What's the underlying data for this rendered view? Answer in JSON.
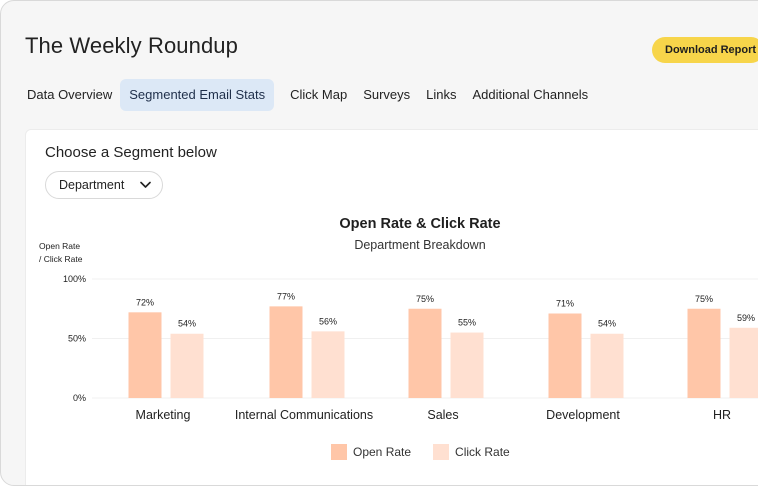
{
  "app": {
    "title": "The Weekly Roundup",
    "download_label": "Download Report"
  },
  "tabs": [
    {
      "label": "Data Overview",
      "active": false
    },
    {
      "label": "Segmented Email Stats",
      "active": true
    },
    {
      "label": "Click Map",
      "active": false
    },
    {
      "label": "Surveys",
      "active": false
    },
    {
      "label": "Links",
      "active": false
    },
    {
      "label": "Additional Channels",
      "active": false
    }
  ],
  "segment": {
    "label": "Choose a Segment below",
    "selected": "Department",
    "dropdown_icon": "chevron-down-icon"
  },
  "colors": {
    "accent": "#f7d54a",
    "open_rate": "#ffc6a8",
    "click_rate": "#ffe0d1",
    "active_tab": "#dce8f6"
  },
  "chart_data": {
    "type": "bar",
    "title": "Open Rate & Click Rate",
    "subtitle": "Department Breakdown",
    "ylabel_lines": [
      "Open Rate",
      "/ Click Rate"
    ],
    "ylim": [
      0,
      100
    ],
    "yticks": [
      "100%",
      "50%",
      "0%"
    ],
    "categories": [
      "Marketing",
      "Internal Communications",
      "Sales",
      "Development",
      "HR"
    ],
    "series": [
      {
        "name": "Open Rate",
        "values": [
          72,
          77,
          75,
          71,
          75
        ],
        "labels": [
          "72%",
          "77%",
          "75%",
          "71%",
          "75%"
        ]
      },
      {
        "name": "Click Rate",
        "values": [
          54,
          56,
          55,
          54,
          59
        ],
        "labels": [
          "54%",
          "56%",
          "55%",
          "54%",
          "59%"
        ]
      }
    ],
    "legend": "bottom-center",
    "grid": true
  }
}
